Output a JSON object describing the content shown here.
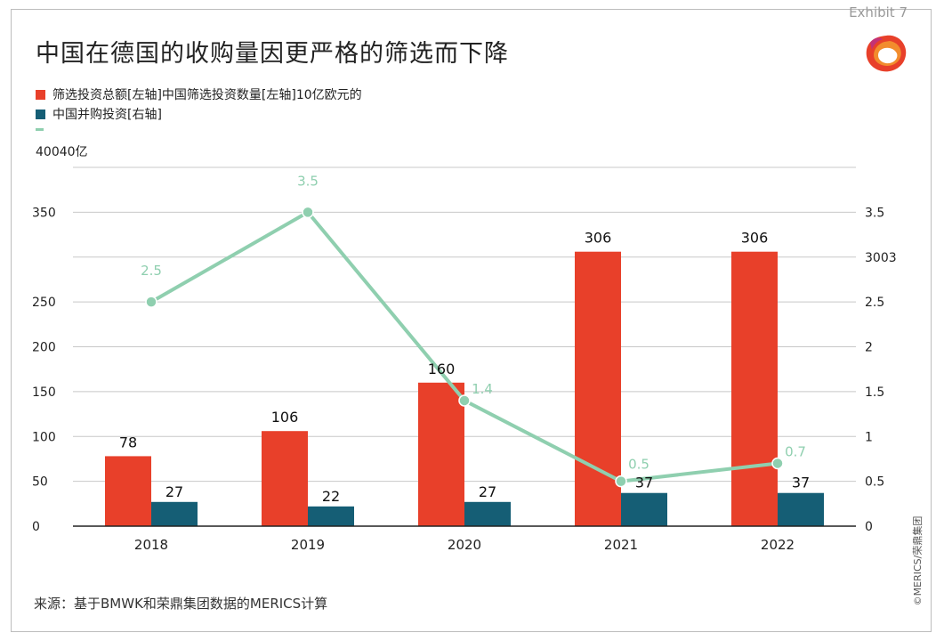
{
  "exhibit_label": "Exhibit 7",
  "title": "中国在德国的收购量因更严格的筛选而下降",
  "legend": [
    {
      "label": "筛选投资总额[左轴]中国筛选投资数量[左轴]10亿欧元的",
      "color": "#e8402a"
    },
    {
      "label": "中国并购投资[右轴]",
      "color": "#155e75"
    }
  ],
  "line_color": "#8fcfaf",
  "top_note": "40040亿",
  "source": "来源：基于BMWK和荣鼎集团数据的MERICS计算",
  "copyright": "©MERICS/荣鼎集团",
  "chart_data": {
    "type": "bar",
    "categories": [
      "2018",
      "2019",
      "2020",
      "2021",
      "2022"
    ],
    "series": [
      {
        "type": "bar",
        "axis": "left",
        "color": "#e8402a",
        "values": [
          78,
          106,
          160,
          306,
          306
        ]
      },
      {
        "type": "bar",
        "axis": "left",
        "color": "#155e75",
        "values": [
          27,
          22,
          27,
          37,
          37
        ]
      },
      {
        "type": "line",
        "axis": "right",
        "color": "#8fcfaf",
        "values": [
          2.5,
          3.5,
          1.4,
          0.5,
          0.7
        ]
      }
    ],
    "left_ticks": [
      "0",
      "50",
      "100",
      "150",
      "200",
      "250",
      "",
      "350",
      ""
    ],
    "right_ticks": [
      "0",
      "0.5",
      "1",
      "1.5",
      "2",
      "2.5",
      "3003",
      "3.5",
      ""
    ],
    "ylim_left": [
      0,
      400
    ],
    "ylim_right": [
      0,
      4
    ],
    "grid": true
  }
}
